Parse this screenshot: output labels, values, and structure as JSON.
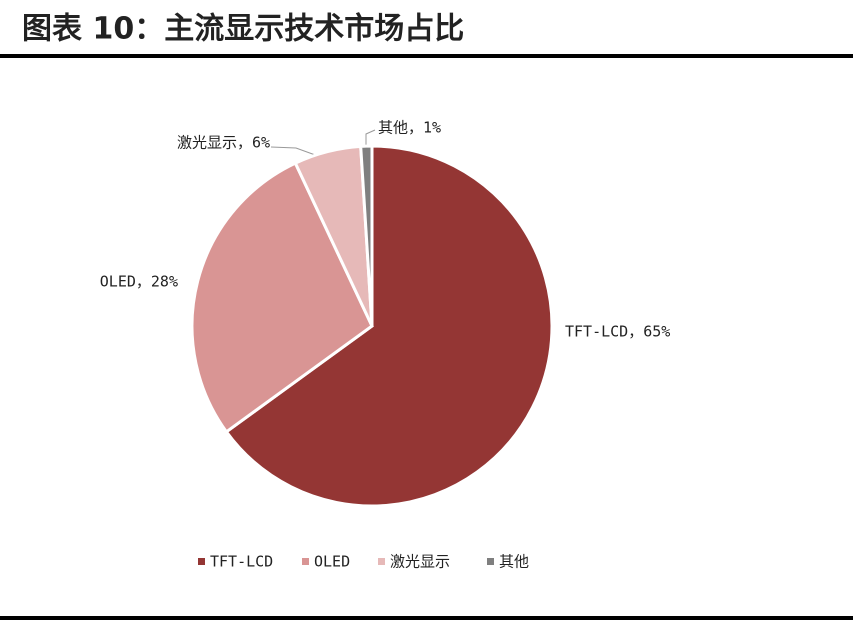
{
  "chart_data": {
    "type": "pie",
    "title": "图表 10：主流显示技术市场占比",
    "categories": [
      "TFT-LCD",
      "OLED",
      "激光显示",
      "其他"
    ],
    "values": [
      65,
      28,
      6,
      1
    ],
    "value_labels": [
      "TFT-LCD，65%",
      "OLED，28%",
      "激光显示，6%",
      "其他，1%"
    ],
    "colors": [
      "#943634",
      "#d99594",
      "#e6b9b8",
      "#7f7f7f"
    ]
  }
}
